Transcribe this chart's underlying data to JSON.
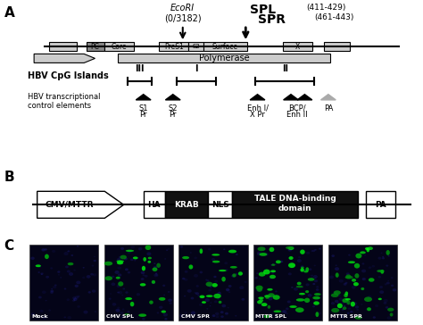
{
  "bg_color": "#ffffff",
  "ecori_text1": "EcoRI",
  "ecori_text2": "(0/3182)",
  "spl_text": "SPL",
  "spl_range": "(411-429)",
  "spr_text": "SPR",
  "spr_range": "(461-443)",
  "polymerase_label": "Polymerase",
  "cpg_label": "HBV CpG Islands",
  "transcriptional_line1": "HBV transcriptional",
  "transcriptional_line2": "control elements",
  "panel_C_labels": [
    "Mock",
    "CMV SPL",
    "CMV SPR",
    "MTTR SPL",
    "MTTR SPR"
  ]
}
